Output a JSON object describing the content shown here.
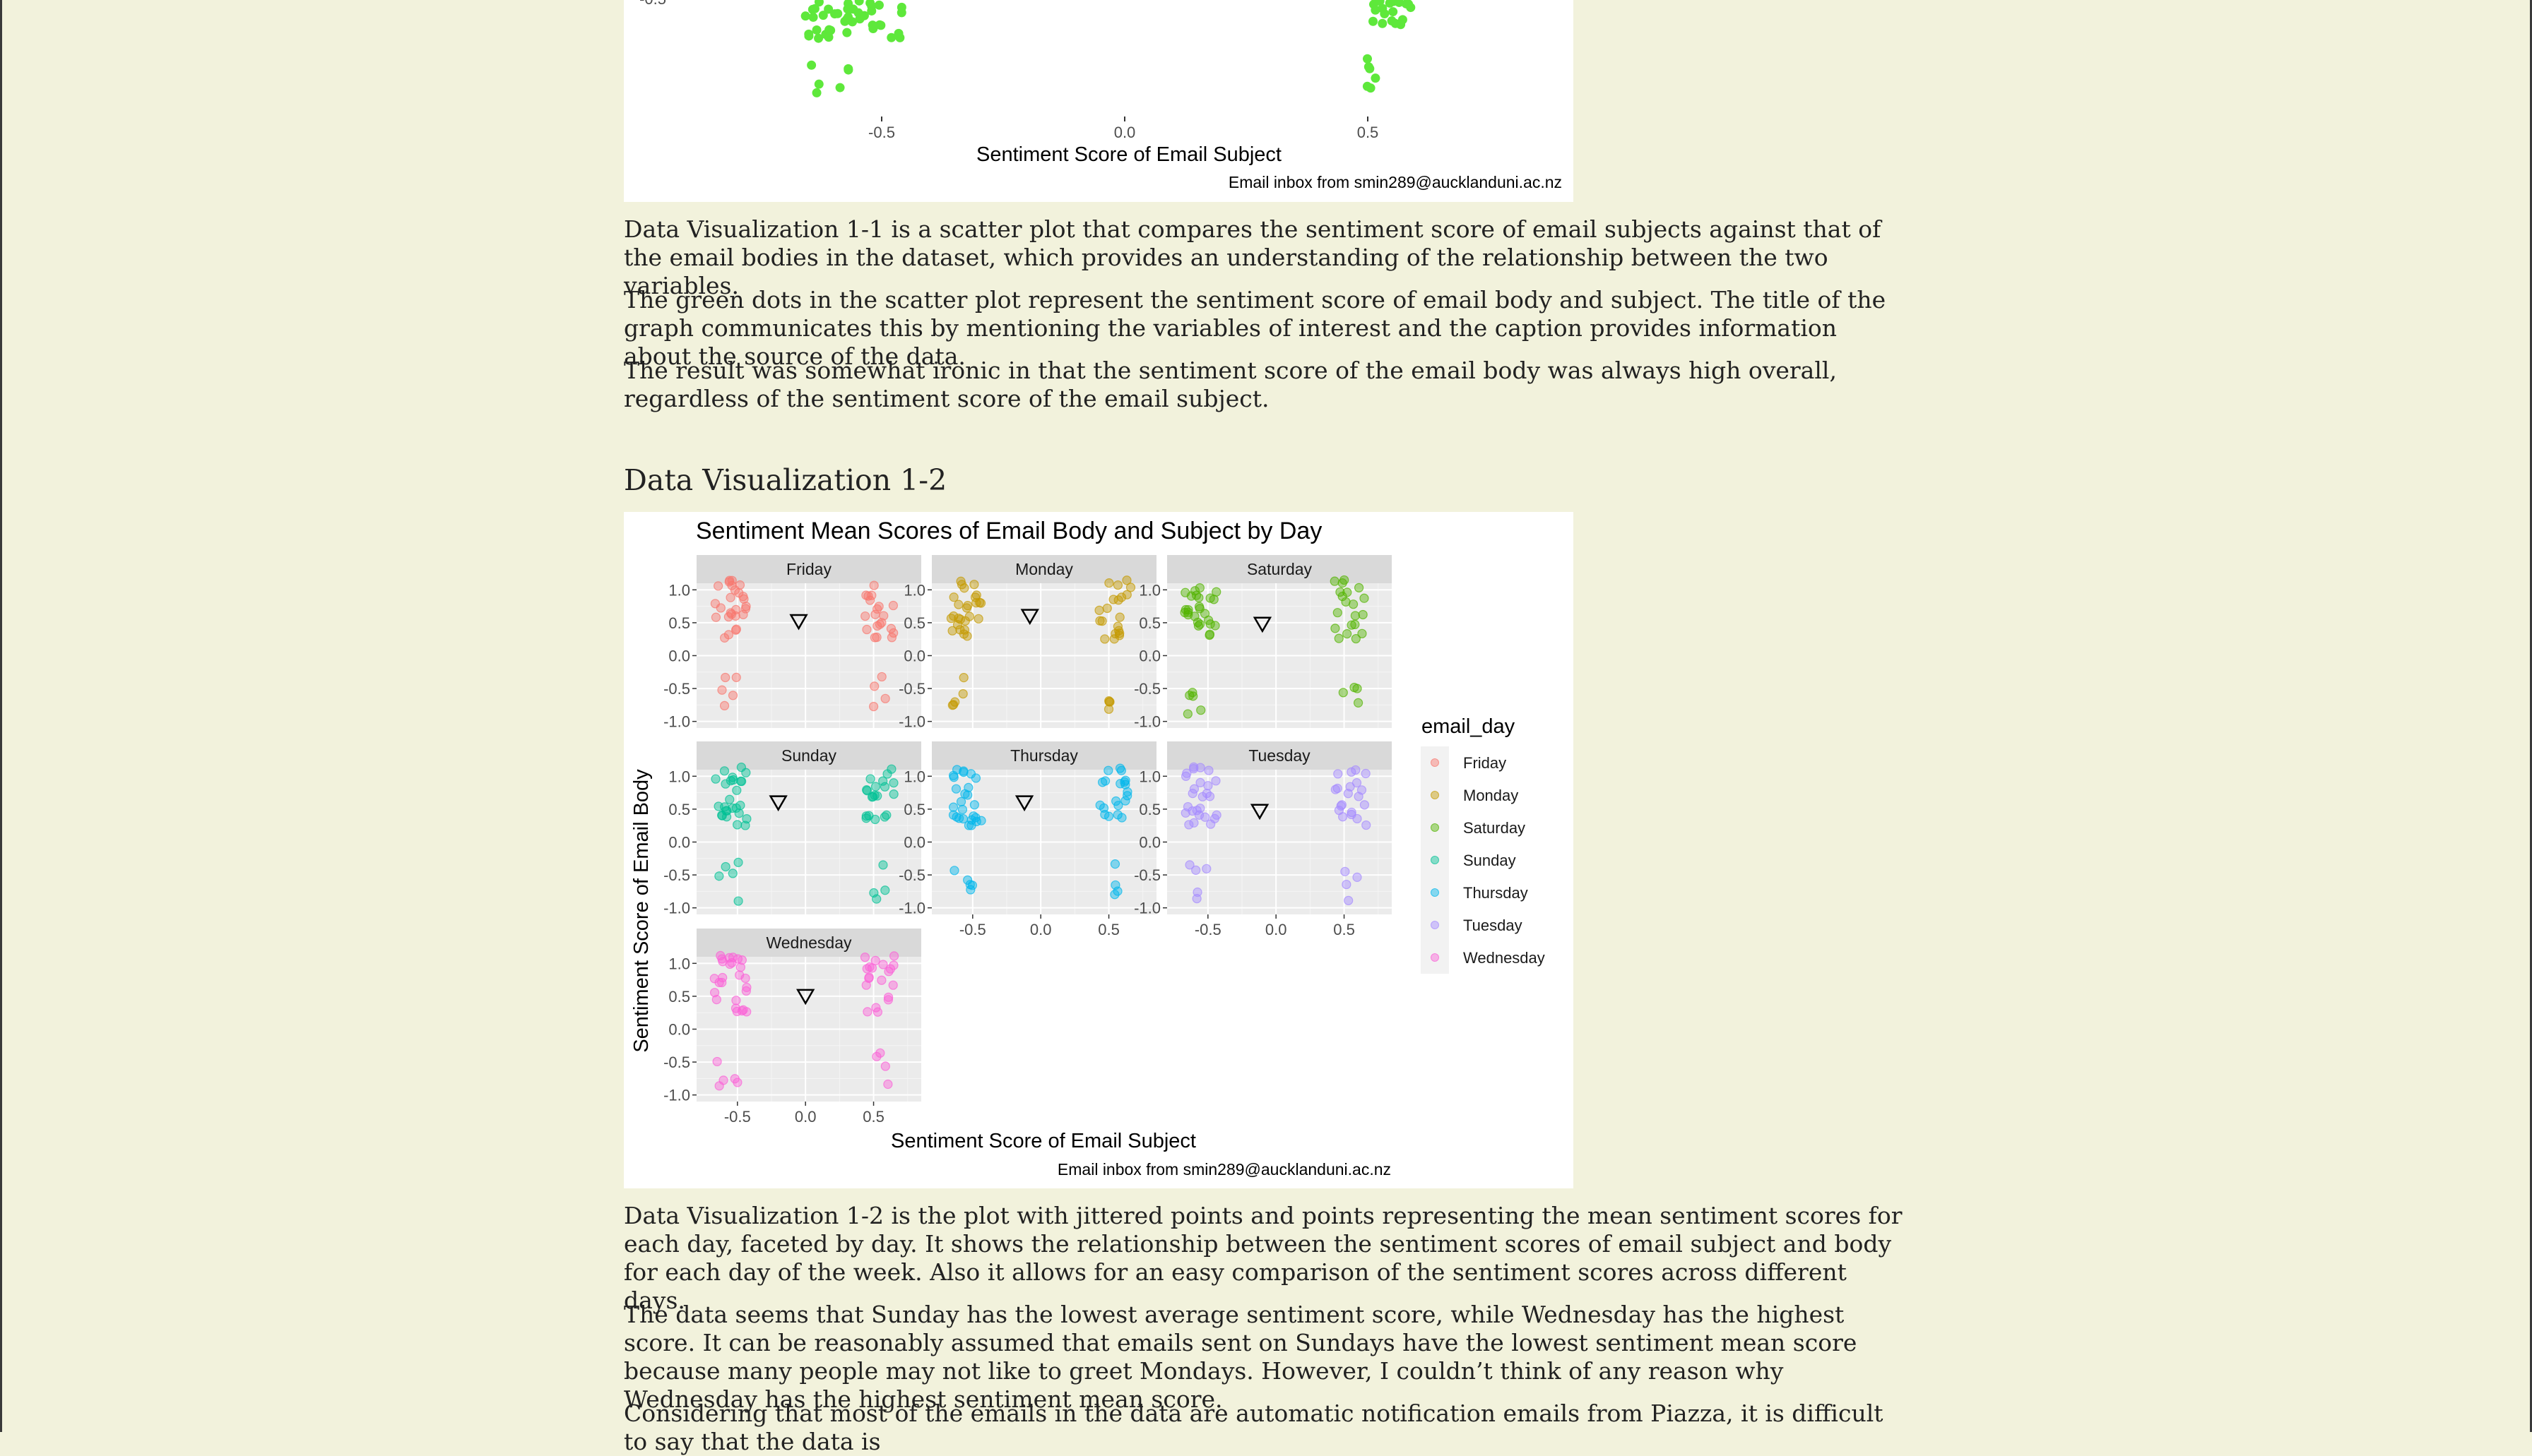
{
  "viz1": {
    "y_tick": "-0.5",
    "x_ticks": [
      "-0.5",
      "0.0",
      "0.5"
    ],
    "xlabel": "Sentiment Score of Email Subject",
    "caption": "Email inbox from smin289@aucklanduni.ac.nz",
    "point_color": "#5ee83b"
  },
  "paragraphs_1": [
    "Data Visualization 1-1 is a scatter plot that compares the sentiment score of email subjects against that of the email bodies in the dataset, which provides an understanding of the relationship between the two variables.",
    "The green dots in the scatter plot represent the sentiment score of email body and subject. The title of the graph communicates this by mentioning the variables of interest and the caption provides information about the source of the data.",
    "The result was somewhat ironic in that the sentiment score of the email body was always high overall, regardless of the sentiment score of the email subject."
  ],
  "section_heading": "Data Visualization 1-2",
  "chart_data": {
    "type": "scatter",
    "title": "Sentiment Mean Scores of Email Body and Subject by Day",
    "xlabel": "Sentiment Score of Email Subject",
    "ylabel": "Sentiment Score of Email Body",
    "caption": "Email inbox from smin289@aucklanduni.ac.nz",
    "legend_title": "email_day",
    "legend_position": "right",
    "grid": true,
    "xlim": [
      -0.8,
      0.85
    ],
    "ylim": [
      -1.1,
      1.1
    ],
    "y_ticks": [
      "1.0",
      "0.5",
      "0.0",
      "-0.5",
      "-1.0"
    ],
    "x_ticks": [
      "-0.5",
      "0.0",
      "0.5"
    ],
    "x_tick_values": [
      -0.5,
      0.0,
      0.5
    ],
    "y_tick_values": [
      1.0,
      0.5,
      0.0,
      -0.5,
      -1.0
    ],
    "facets": [
      {
        "name": "Friday",
        "color": "#f8766d",
        "mean": [
          -0.05,
          0.52
        ]
      },
      {
        "name": "Monday",
        "color": "#c49a00",
        "mean": [
          -0.08,
          0.6
        ]
      },
      {
        "name": "Saturday",
        "color": "#53b400",
        "mean": [
          -0.1,
          0.48
        ]
      },
      {
        "name": "Sunday",
        "color": "#00c094",
        "mean": [
          -0.2,
          0.6
        ]
      },
      {
        "name": "Thursday",
        "color": "#00b6eb",
        "mean": [
          -0.12,
          0.6
        ]
      },
      {
        "name": "Tuesday",
        "color": "#a58aff",
        "mean": [
          -0.12,
          0.47
        ]
      },
      {
        "name": "Wednesday",
        "color": "#fb61d7",
        "mean": [
          0.0,
          0.5
        ]
      }
    ]
  },
  "paragraphs_2": [
    "Data Visualization 1-2 is the plot with jittered points and points representing the mean sentiment scores for each day, faceted by day. It shows the relationship between the sentiment scores of email subject and body for each day of the week. Also it allows for an easy comparison of the sentiment scores across different days.",
    "The data seems that Sunday has the lowest average sentiment score, while Wednesday has the highest score. It can be reasonably assumed that emails sent on Sundays have the lowest sentiment mean score because many people may not like to greet Mondays. However, I couldn’t think of any reason why Wednesday has the highest sentiment mean score.",
    "Considering that most of the emails in the data are automatic notification emails from Piazza, it is difficult to say that the data is"
  ]
}
